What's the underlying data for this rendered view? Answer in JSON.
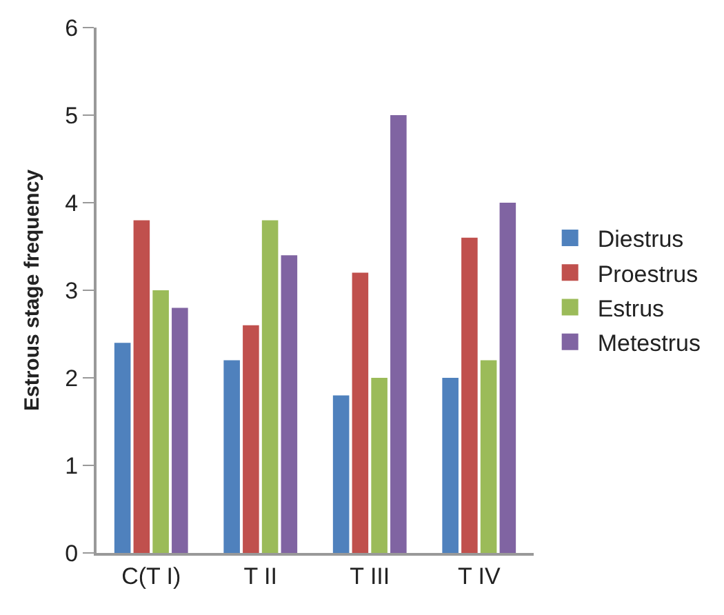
{
  "chart_data": {
    "type": "bar",
    "ylabel": "Estrous stage frequency",
    "categories": [
      "C(T I)",
      "T II",
      "T III",
      "T IV"
    ],
    "series": [
      {
        "name": "Diestrus",
        "color": "#4f81bd",
        "values": [
          2.4,
          2.2,
          1.8,
          2.0
        ]
      },
      {
        "name": "Proestrus",
        "color": "#c0504d",
        "values": [
          3.8,
          2.6,
          3.2,
          3.6
        ]
      },
      {
        "name": "Estrus",
        "color": "#9bbb59",
        "values": [
          3.0,
          3.8,
          2.0,
          2.2
        ]
      },
      {
        "name": "Metestrus",
        "color": "#8064a2",
        "values": [
          2.8,
          3.4,
          5.0,
          4.0
        ]
      }
    ],
    "ylim": [
      0,
      6
    ],
    "yticks": [
      0,
      1,
      2,
      3,
      4,
      5,
      6
    ],
    "legend": "right"
  }
}
